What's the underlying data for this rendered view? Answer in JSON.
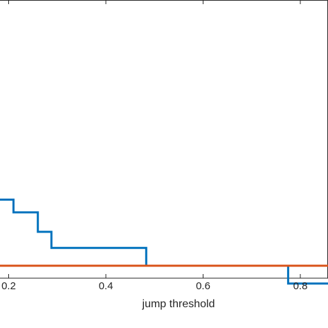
{
  "chart_data": {
    "type": "line",
    "title": "",
    "xlabel": "jump threshold",
    "ylabel": "",
    "xlim": [
      0.0,
      0.862
    ],
    "ylim": [
      0.0,
      0.435
    ],
    "x_ticks": [
      0.2,
      0.4,
      0.6,
      0.8
    ],
    "x_tick_labels": [
      "0.2",
      "0.4",
      "0.6",
      "0.8"
    ],
    "grid": false,
    "legend": "none",
    "series": [
      {
        "color": "#0072BD",
        "step": true,
        "points": [
          [
            0.0,
            0.078
          ],
          [
            0.21,
            0.078
          ],
          [
            0.21,
            0.063
          ],
          [
            0.26,
            0.063
          ],
          [
            0.26,
            0.04
          ],
          [
            0.288,
            0.04
          ],
          [
            0.288,
            0.021
          ],
          [
            0.483,
            0.021
          ],
          [
            0.483,
            0.0
          ],
          [
            0.775,
            0.0
          ],
          [
            0.775,
            -0.021
          ],
          [
            0.862,
            -0.021
          ]
        ]
      },
      {
        "color": "#D95319",
        "step": false,
        "points": [
          [
            0.0,
            0.0
          ],
          [
            0.862,
            0.0
          ]
        ]
      }
    ]
  }
}
